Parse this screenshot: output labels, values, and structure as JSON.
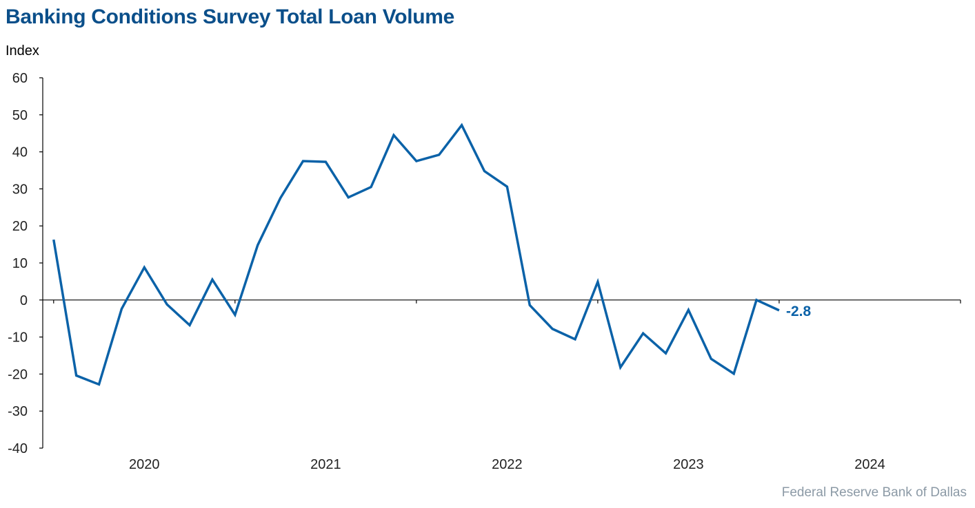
{
  "header": {
    "title": "Banking Conditions Survey Total Loan Volume",
    "ylabel": "Index"
  },
  "footer": {
    "source": "Federal Reserve Bank of Dallas"
  },
  "colors": {
    "title": "#0b4f8a",
    "line": "#0b62a8",
    "axis": "#000000",
    "source": "#8c9aa6"
  },
  "chart_data": {
    "type": "line",
    "title": "Banking Conditions Survey Total Loan Volume",
    "ylabel": "Index",
    "xlabel": "",
    "ylim": [
      -40,
      60
    ],
    "yticks": [
      -40,
      -30,
      -20,
      -10,
      0,
      10,
      20,
      30,
      40,
      50,
      60
    ],
    "xlim": [
      2019.44,
      2024.5
    ],
    "xtick_labels": [
      "2020",
      "2021",
      "2022",
      "2023",
      "2024"
    ],
    "grid": false,
    "series": [
      {
        "values": [
          [
            2019.5,
            16.3
          ],
          [
            2019.625,
            -20.4
          ],
          [
            2019.75,
            -22.8
          ],
          [
            2019.875,
            -2.4
          ],
          [
            2020.0,
            8.8
          ],
          [
            2020.125,
            -1.2
          ],
          [
            2020.25,
            -6.8
          ],
          [
            2020.375,
            5.5
          ],
          [
            2020.5,
            -4.0
          ],
          [
            2020.625,
            14.8
          ],
          [
            2020.75,
            27.5
          ],
          [
            2020.875,
            37.5
          ],
          [
            2021.0,
            37.3
          ],
          [
            2021.125,
            27.7
          ],
          [
            2021.25,
            30.5
          ],
          [
            2021.375,
            44.5
          ],
          [
            2021.5,
            37.5
          ],
          [
            2021.625,
            39.2
          ],
          [
            2021.75,
            47.2
          ],
          [
            2021.875,
            34.8
          ],
          [
            2022.0,
            30.6
          ],
          [
            2022.125,
            -1.4
          ],
          [
            2022.25,
            -7.8
          ],
          [
            2022.375,
            -10.6
          ],
          [
            2022.5,
            4.9
          ],
          [
            2022.625,
            -18.2
          ],
          [
            2022.75,
            -9.0
          ],
          [
            2022.875,
            -14.4
          ],
          [
            2023.0,
            -2.7
          ],
          [
            2023.125,
            -15.9
          ],
          [
            2023.25,
            -19.9
          ],
          [
            2023.375,
            0.0
          ],
          [
            2023.5,
            -2.8
          ]
        ]
      }
    ],
    "annotations": [
      {
        "text": "-2.8",
        "x": 2023.5,
        "y": -2.8
      }
    ]
  }
}
